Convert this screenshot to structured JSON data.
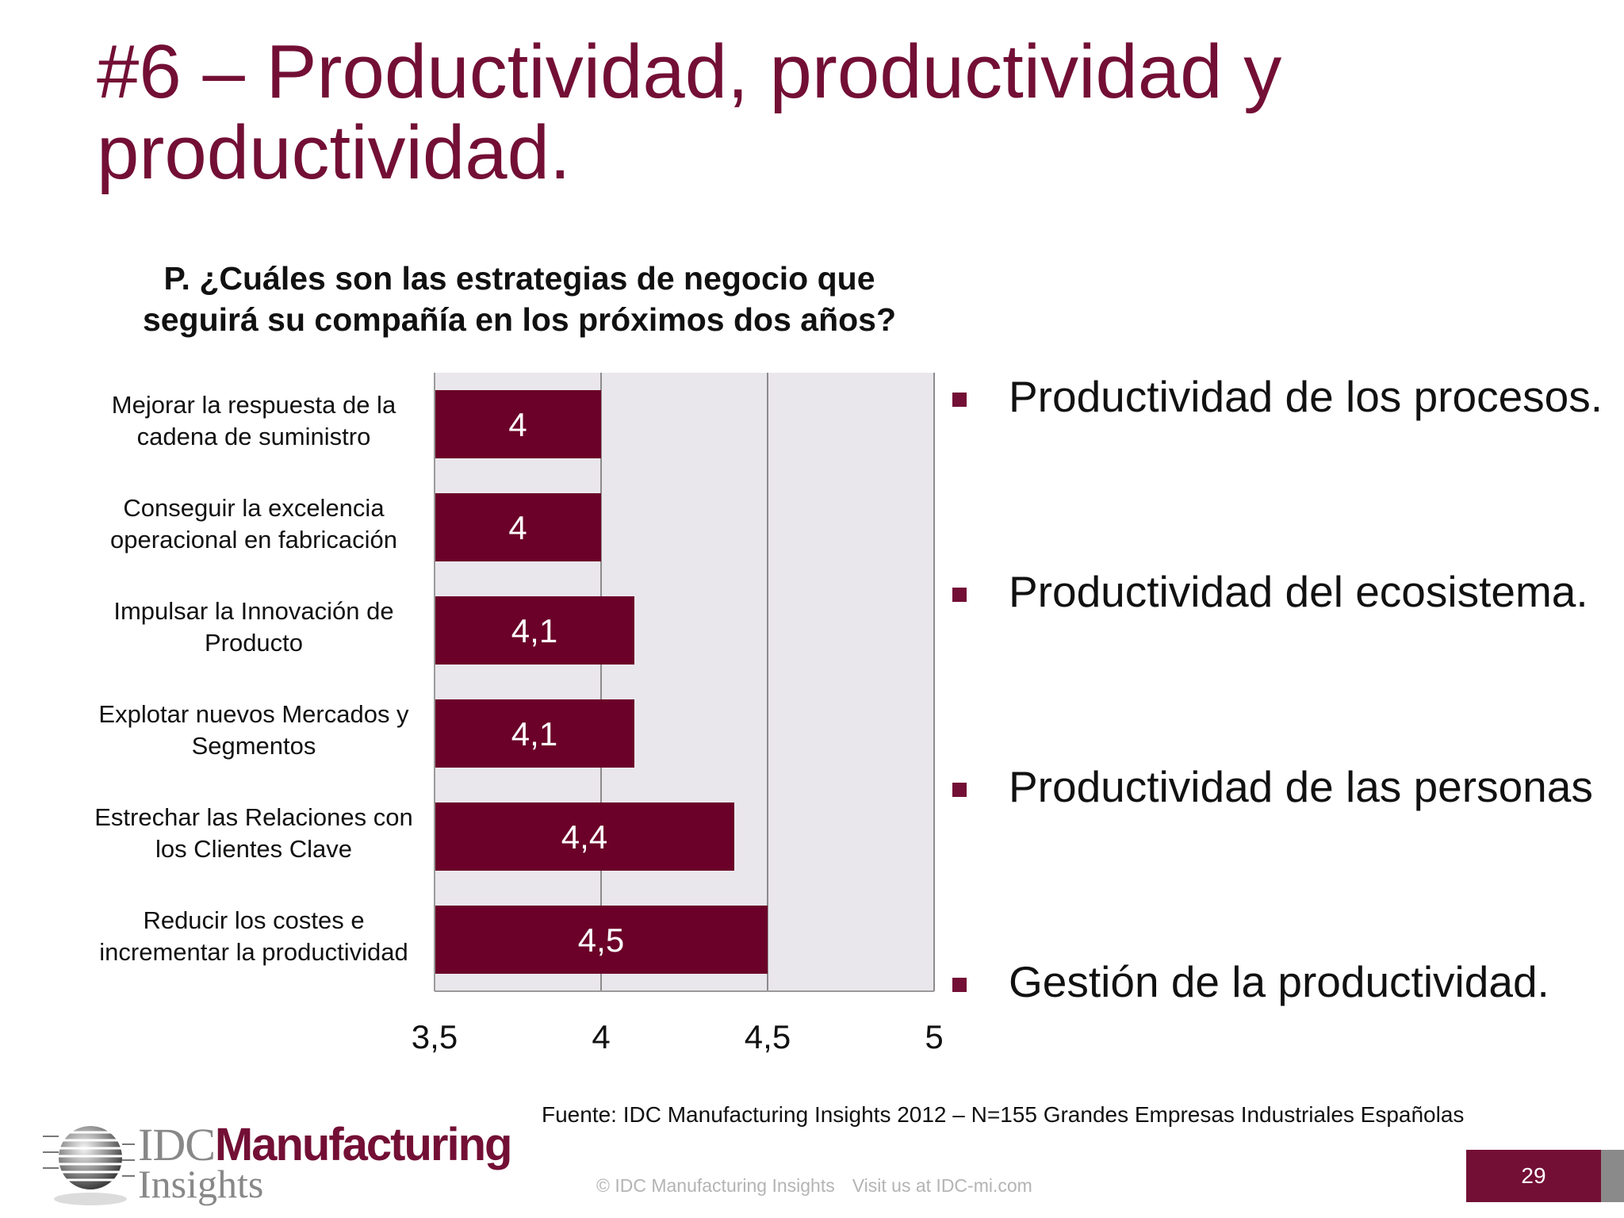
{
  "slide": {
    "title": "#6 – Productividad, productividad y productividad.",
    "page_number": "29"
  },
  "colors": {
    "accent": "#730f35",
    "bar": "#6b0128",
    "plot_background": "#eae7ec"
  },
  "chart_data": {
    "type": "bar",
    "orientation": "horizontal",
    "title": "P. ¿Cuáles son las estrategias de negocio que seguirá su compañía en los próximos dos años?",
    "categories": [
      "Mejorar la respuesta de la cadena de suministro",
      "Conseguir la excelencia operacional en fabricación",
      "Impulsar la Innovación de Producto",
      "Explotar nuevos Mercados y Segmentos",
      "Estrechar las Relaciones con los Clientes Clave",
      "Reducir los costes e incrementar la productividad"
    ],
    "category_lines": [
      [
        "Mejorar la respuesta de la",
        "cadena de suministro"
      ],
      [
        "Conseguir la excelencia",
        "operacional en fabricación"
      ],
      [
        "Impulsar la Innovación de",
        "Producto"
      ],
      [
        "Explotar nuevos Mercados y",
        "Segmentos"
      ],
      [
        "Estrechar las Relaciones con",
        "los Clientes Clave"
      ],
      [
        "Reducir los costes e",
        "incrementar la productividad"
      ]
    ],
    "values": [
      4,
      4,
      4.1,
      4.1,
      4.4,
      4.5
    ],
    "value_labels": [
      "4",
      "4",
      "4,1",
      "4,1",
      "4,4",
      "4,5"
    ],
    "xlim": [
      3.5,
      5
    ],
    "xticks": [
      3.5,
      4,
      4.5,
      5
    ],
    "xtick_labels": [
      "3,5",
      "4",
      "4,5",
      "5"
    ],
    "xlabel": "",
    "ylabel": "",
    "grid": true,
    "legend": false
  },
  "bullets": [
    "Productividad de los procesos.",
    "Productividad del ecosistema.",
    "Productividad de las personas",
    "Gestión de la productividad."
  ],
  "source": "Fuente: IDC Manufacturing Insights 2012  –  N=155 Grandes Empresas Industriales Españolas",
  "footer": {
    "copyright": "© IDC Manufacturing Insights",
    "visit": "Visit us at IDC-mi.com"
  },
  "logo": {
    "company": "IDC",
    "brand": "Manufacturing",
    "division": "Insights"
  }
}
